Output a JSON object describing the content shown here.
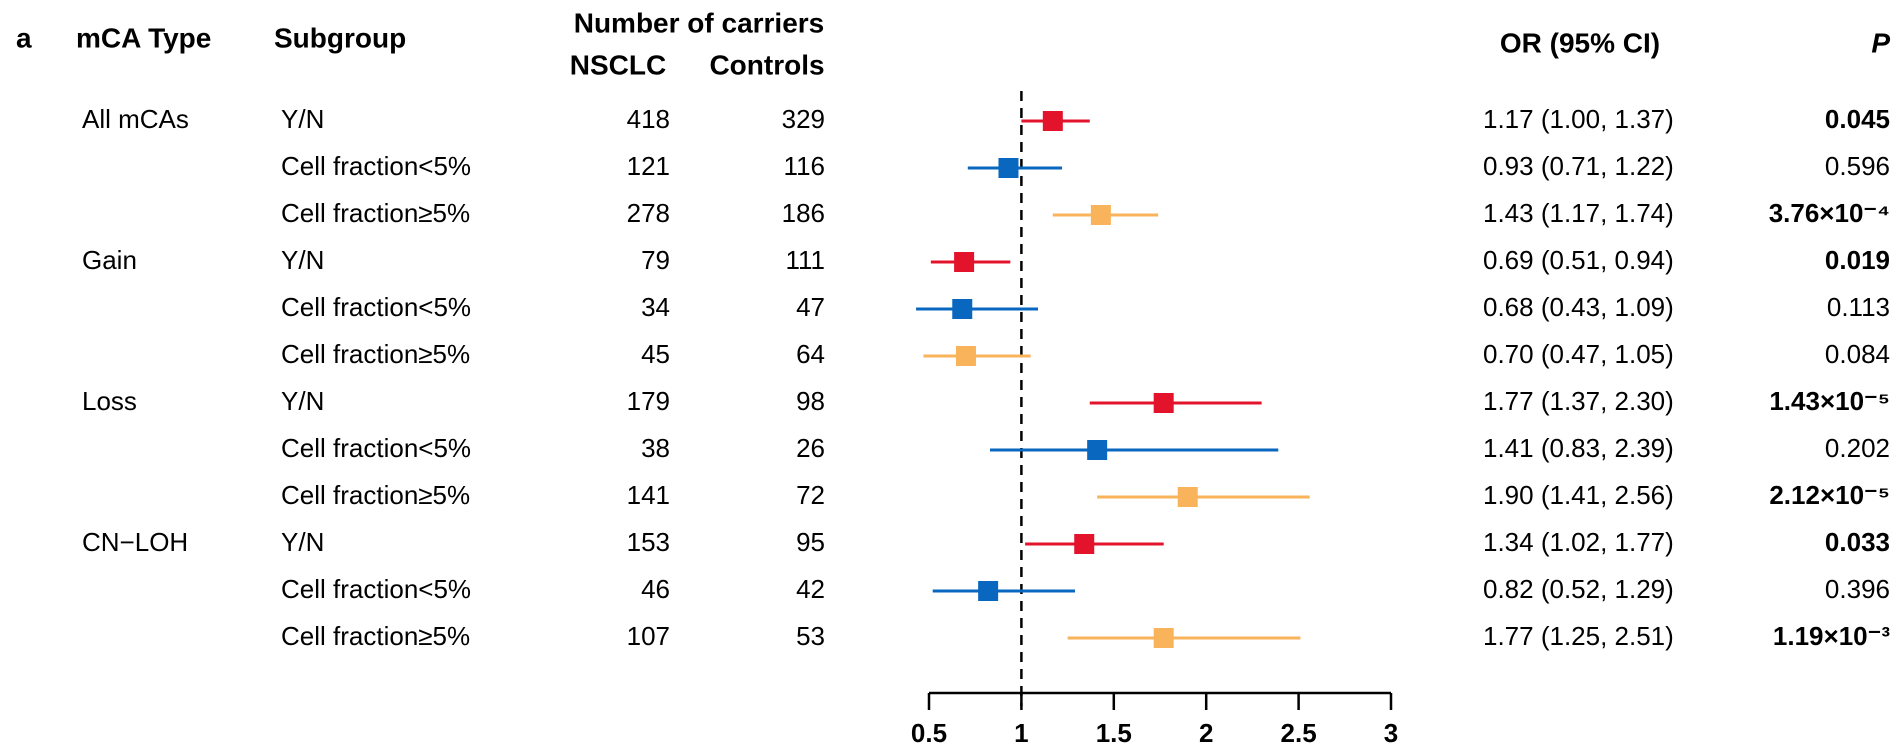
{
  "chart_data": {
    "type": "forest",
    "panel_label": "a",
    "headers": {
      "group": "mCA Type",
      "subgroup": "Subgroup",
      "carriers": "Number of carriers",
      "cases": "NSCLC",
      "controls": "Controls",
      "or": "OR (95% CI)",
      "p": "P"
    },
    "xlim": [
      0.5,
      3
    ],
    "xticks": [
      0.5,
      1,
      1.5,
      2,
      2.5,
      3
    ],
    "reference_line": 1,
    "rows": [
      {
        "group": "All mCAs",
        "subgroup": "Y/N",
        "cases": 418,
        "controls": 329,
        "value": 1.17,
        "lower": 1.0,
        "upper": 1.37,
        "value_label": "1.17 (1.00, 1.37)",
        "p": "0.045",
        "p_bold": true,
        "color": "#e3132c"
      },
      {
        "subgroup": "Cell fraction<5%",
        "cases": 121,
        "controls": 116,
        "value": 0.93,
        "lower": 0.71,
        "upper": 1.22,
        "value_label": "0.93 (0.71, 1.22)",
        "p": "0.596",
        "p_bold": false,
        "color": "#0a67c0"
      },
      {
        "subgroup": "Cell fraction≥5%",
        "cases": 278,
        "controls": 186,
        "value": 1.43,
        "lower": 1.17,
        "upper": 1.74,
        "value_label": "1.43 (1.17, 1.74)",
        "p": "3.76×10⁻⁴",
        "p_bold": true,
        "color": "#f9b35a"
      },
      {
        "group": "Gain",
        "subgroup": "Y/N",
        "cases": 79,
        "controls": 111,
        "value": 0.69,
        "lower": 0.51,
        "upper": 0.94,
        "value_label": "0.69 (0.51, 0.94)",
        "p": "0.019",
        "p_bold": true,
        "color": "#e3132c"
      },
      {
        "subgroup": "Cell fraction<5%",
        "cases": 34,
        "controls": 47,
        "value": 0.68,
        "lower": 0.43,
        "upper": 1.09,
        "value_label": "0.68 (0.43, 1.09)",
        "p": "0.113",
        "p_bold": false,
        "color": "#0a67c0"
      },
      {
        "subgroup": "Cell fraction≥5%",
        "cases": 45,
        "controls": 64,
        "value": 0.7,
        "lower": 0.47,
        "upper": 1.05,
        "value_label": "0.70 (0.47, 1.05)",
        "p": "0.084",
        "p_bold": false,
        "color": "#f9b35a"
      },
      {
        "group": "Loss",
        "subgroup": "Y/N",
        "cases": 179,
        "controls": 98,
        "value": 1.77,
        "lower": 1.37,
        "upper": 2.3,
        "value_label": "1.77 (1.37, 2.30)",
        "p": "1.43×10⁻⁵",
        "p_bold": true,
        "color": "#e3132c"
      },
      {
        "subgroup": "Cell fraction<5%",
        "cases": 38,
        "controls": 26,
        "value": 1.41,
        "lower": 0.83,
        "upper": 2.39,
        "value_label": "1.41 (0.83, 2.39)",
        "p": "0.202",
        "p_bold": false,
        "color": "#0a67c0"
      },
      {
        "subgroup": "Cell fraction≥5%",
        "cases": 141,
        "controls": 72,
        "value": 1.9,
        "lower": 1.41,
        "upper": 2.56,
        "value_label": "1.90 (1.41, 2.56)",
        "p": "2.12×10⁻⁵",
        "p_bold": true,
        "color": "#f9b35a"
      },
      {
        "group": "CN−LOH",
        "subgroup": "Y/N",
        "cases": 153,
        "controls": 95,
        "value": 1.34,
        "lower": 1.02,
        "upper": 1.77,
        "value_label": "1.34 (1.02, 1.77)",
        "p": "0.033",
        "p_bold": true,
        "color": "#e3132c"
      },
      {
        "subgroup": "Cell fraction<5%",
        "cases": 46,
        "controls": 42,
        "value": 0.82,
        "lower": 0.52,
        "upper": 1.29,
        "value_label": "0.82 (0.52, 1.29)",
        "p": "0.396",
        "p_bold": false,
        "color": "#0a67c0"
      },
      {
        "subgroup": "Cell fraction≥5%",
        "cases": 107,
        "controls": 53,
        "value": 1.77,
        "lower": 1.25,
        "upper": 2.51,
        "value_label": "1.77 (1.25, 2.51)",
        "p": "1.19×10⁻³",
        "p_bold": true,
        "color": "#f9b35a"
      }
    ]
  }
}
